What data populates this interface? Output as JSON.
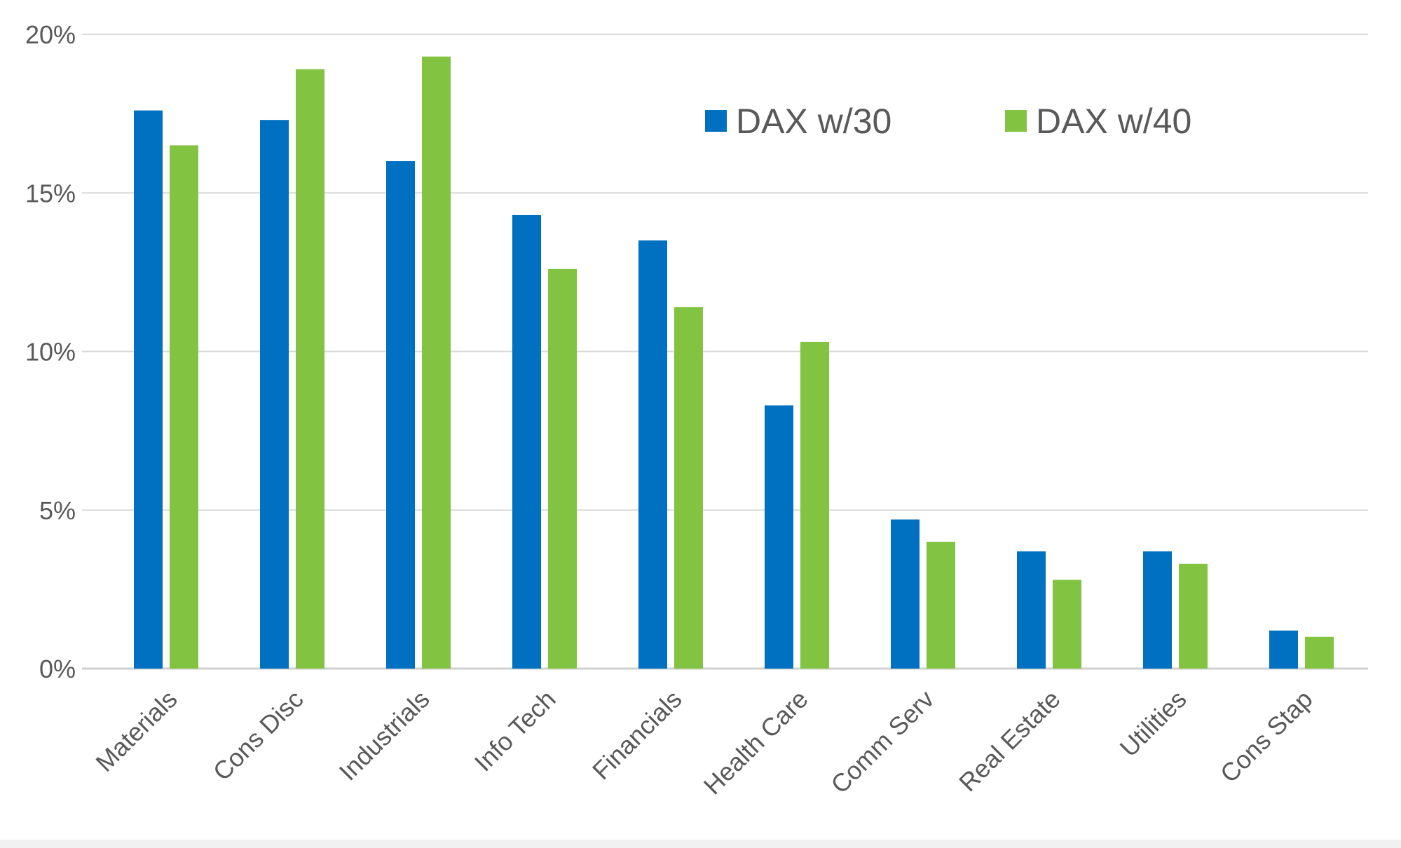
{
  "chart_data": {
    "type": "bar",
    "categories": [
      "Materials",
      "Cons Disc",
      "Industrials",
      "Info Tech",
      "Financials",
      "Health Care",
      "Comm Serv",
      "Real Estate",
      "Utilities",
      "Cons Stap"
    ],
    "series": [
      {
        "name": "DAX w/30",
        "color": "#0070c0",
        "values": [
          17.6,
          17.3,
          16.0,
          14.3,
          13.5,
          8.3,
          4.7,
          3.7,
          3.7,
          1.2
        ]
      },
      {
        "name": "DAX w/40",
        "color": "#82c341",
        "values": [
          16.5,
          18.9,
          19.3,
          12.6,
          11.4,
          10.3,
          4.0,
          2.8,
          3.3,
          1.0
        ]
      }
    ],
    "yticks": [
      "0%",
      "5%",
      "10%",
      "15%",
      "20%"
    ],
    "ytick_values": [
      0,
      5,
      10,
      15,
      20
    ],
    "ylim": [
      0,
      20
    ],
    "grid": true,
    "legend_position": "top-right",
    "title": "",
    "xlabel": "",
    "ylabel": ""
  }
}
